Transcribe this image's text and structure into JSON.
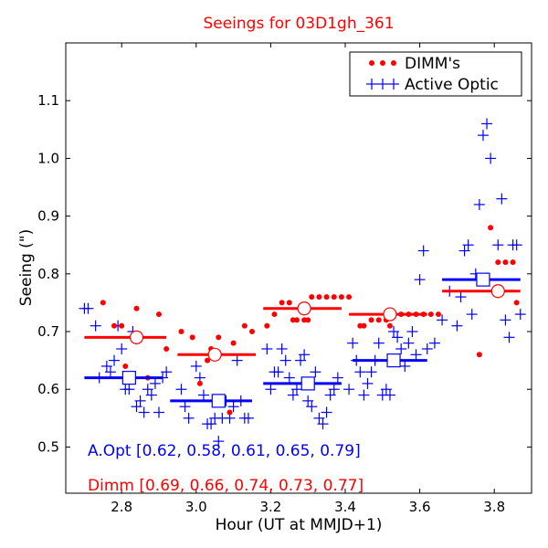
{
  "chart_data": {
    "type": "scatter",
    "title": "Seeings for 03D1gh_361",
    "xlabel": "Hour (UT at MMJD+1)",
    "ylabel": "Seeing (\")",
    "xlim": [
      2.65,
      3.9
    ],
    "ylim": [
      0.42,
      1.2
    ],
    "xticks": [
      "2.8",
      "3.0",
      "3.2",
      "3.4",
      "3.6",
      "3.8"
    ],
    "yticks": [
      "0.5",
      "0.6",
      "0.7",
      "0.8",
      "0.9",
      "1.0",
      "1.1"
    ],
    "legend": {
      "placement": "top-right",
      "entries": [
        "DIMM's",
        "Active Optic"
      ]
    },
    "colors": {
      "dimm": "#ff0000",
      "aopt": "#0000ff",
      "title": "#ff0000"
    },
    "annotations": {
      "aopt_summary": "A.Opt [0.62, 0.58, 0.61, 0.65, 0.79]",
      "dimm_summary": "Dimm [0.69, 0.66, 0.74, 0.73, 0.77]"
    },
    "series": [
      {
        "name": "DIMM's",
        "marker": "dot",
        "x": [
          2.75,
          2.78,
          2.8,
          2.81,
          2.84,
          2.87,
          2.9,
          2.92,
          2.96,
          2.99,
          3.01,
          3.03,
          3.04,
          3.06,
          3.09,
          3.1,
          3.13,
          3.15,
          3.19,
          3.21,
          3.23,
          3.25,
          3.26,
          3.27,
          3.29,
          3.3,
          3.31,
          3.33,
          3.35,
          3.37,
          3.39,
          3.41,
          3.44,
          3.45,
          3.47,
          3.49,
          3.51,
          3.52,
          3.55,
          3.57,
          3.59,
          3.61,
          3.63,
          3.65,
          3.76,
          3.79,
          3.81,
          3.83,
          3.85,
          3.86
        ],
        "y": [
          0.75,
          0.71,
          0.71,
          0.64,
          0.74,
          0.62,
          0.73,
          0.67,
          0.7,
          0.69,
          0.61,
          0.65,
          0.67,
          0.69,
          0.56,
          0.68,
          0.71,
          0.7,
          0.71,
          0.73,
          0.75,
          0.75,
          0.72,
          0.72,
          0.72,
          0.72,
          0.76,
          0.76,
          0.76,
          0.76,
          0.76,
          0.76,
          0.71,
          0.71,
          0.72,
          0.72,
          0.72,
          0.71,
          0.73,
          0.73,
          0.73,
          0.73,
          0.73,
          0.73,
          0.66,
          0.88,
          0.82,
          0.82,
          0.82,
          0.75
        ]
      },
      {
        "name": "Active Optic",
        "marker": "plus",
        "x": [
          2.7,
          2.71,
          2.73,
          2.74,
          2.76,
          2.77,
          2.78,
          2.79,
          2.8,
          2.81,
          2.82,
          2.83,
          2.84,
          2.85,
          2.86,
          2.87,
          2.88,
          2.89,
          2.9,
          2.91,
          2.92,
          2.96,
          2.97,
          2.98,
          3.0,
          3.01,
          3.02,
          3.03,
          3.04,
          3.05,
          3.06,
          3.07,
          3.08,
          3.09,
          3.1,
          3.11,
          3.12,
          3.13,
          3.14,
          3.19,
          3.2,
          3.21,
          3.22,
          3.23,
          3.24,
          3.25,
          3.26,
          3.27,
          3.28,
          3.29,
          3.3,
          3.31,
          3.32,
          3.33,
          3.34,
          3.35,
          3.36,
          3.37,
          3.38,
          3.41,
          3.42,
          3.43,
          3.44,
          3.45,
          3.46,
          3.47,
          3.48,
          3.49,
          3.5,
          3.51,
          3.52,
          3.53,
          3.54,
          3.55,
          3.56,
          3.57,
          3.58,
          3.59,
          3.6,
          3.61,
          3.62,
          3.64,
          3.66,
          3.68,
          3.7,
          3.71,
          3.72,
          3.73,
          3.74,
          3.75,
          3.76,
          3.77,
          3.78,
          3.79,
          3.8,
          3.81,
          3.82,
          3.83,
          3.84,
          3.85,
          3.86,
          3.87
        ],
        "y": [
          0.74,
          0.74,
          0.71,
          0.62,
          0.64,
          0.63,
          0.65,
          0.71,
          0.67,
          0.6,
          0.6,
          0.7,
          0.57,
          0.58,
          0.56,
          0.6,
          0.59,
          0.61,
          0.56,
          0.62,
          0.63,
          0.6,
          0.57,
          0.55,
          0.64,
          0.62,
          0.59,
          0.54,
          0.54,
          0.55,
          0.51,
          0.55,
          0.58,
          0.55,
          0.57,
          0.65,
          0.58,
          0.55,
          0.55,
          0.67,
          0.6,
          0.63,
          0.63,
          0.67,
          0.65,
          0.62,
          0.59,
          0.6,
          0.65,
          0.66,
          0.58,
          0.57,
          0.63,
          0.55,
          0.54,
          0.56,
          0.59,
          0.6,
          0.62,
          0.6,
          0.68,
          0.65,
          0.63,
          0.59,
          0.61,
          0.63,
          0.65,
          0.68,
          0.59,
          0.6,
          0.59,
          0.7,
          0.69,
          0.67,
          0.64,
          0.68,
          0.7,
          0.66,
          0.79,
          0.84,
          0.67,
          0.68,
          0.72,
          0.77,
          0.71,
          0.76,
          0.84,
          0.85,
          0.73,
          0.8,
          0.92,
          1.04,
          1.06,
          1.0,
          0.77,
          0.85,
          0.93,
          0.72,
          0.69,
          0.85,
          0.85,
          0.73
        ]
      },
      {
        "name": "DIMM bin medians",
        "marker": "open-circle",
        "x": [
          2.84,
          3.05,
          3.29,
          3.52,
          3.81
        ],
        "y": [
          0.69,
          0.66,
          0.74,
          0.73,
          0.77
        ],
        "segments": [
          [
            2.7,
            2.92
          ],
          [
            2.95,
            3.16
          ],
          [
            3.18,
            3.39
          ],
          [
            3.41,
            3.62
          ],
          [
            3.66,
            3.87
          ]
        ]
      },
      {
        "name": "A.Opt bin medians",
        "marker": "open-square",
        "x": [
          2.82,
          3.06,
          3.3,
          3.53,
          3.77
        ],
        "y": [
          0.62,
          0.58,
          0.61,
          0.65,
          0.79
        ],
        "segments": [
          [
            2.7,
            2.91
          ],
          [
            2.93,
            3.15
          ],
          [
            3.18,
            3.39
          ],
          [
            3.42,
            3.62
          ],
          [
            3.66,
            3.87
          ]
        ]
      }
    ]
  }
}
